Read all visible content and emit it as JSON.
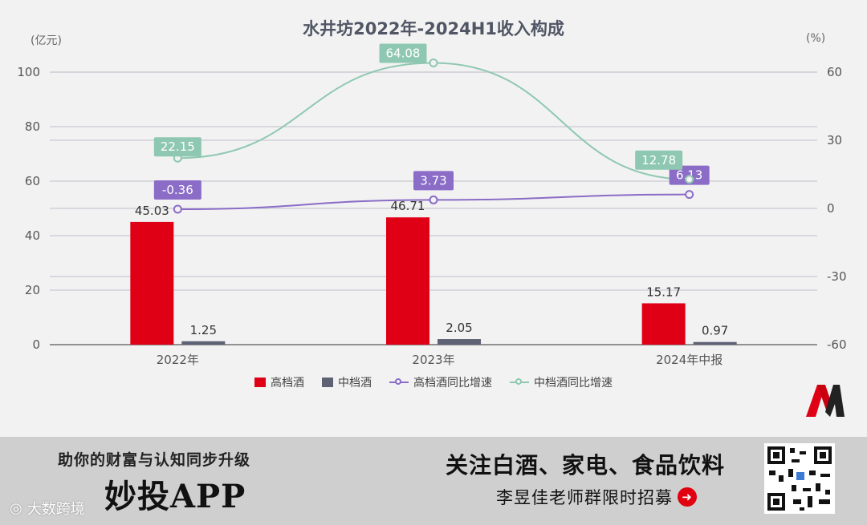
{
  "chart_data": {
    "type": "bar",
    "title": "水井坊2022年-2024H1收入构成",
    "left_unit": "(亿元)",
    "right_unit": "(%)",
    "categories": [
      "2022年",
      "2023年",
      "2024年中报"
    ],
    "ylim_left": [
      0,
      100
    ],
    "ylim_right": [
      -60,
      60
    ],
    "left_ticks": [
      "0",
      "20",
      "40",
      "60",
      "80",
      "100"
    ],
    "right_ticks": [
      "-60",
      "-30",
      "0",
      "30",
      "60"
    ],
    "grid": true,
    "legend_position": "bottom",
    "series": [
      {
        "name": "高档酒",
        "kind": "bar",
        "axis": "left",
        "color": "#e00015",
        "values": [
          45.03,
          46.71,
          15.17
        ],
        "labels": [
          "45.03",
          "46.71",
          "15.17"
        ]
      },
      {
        "name": "中档酒",
        "kind": "bar",
        "axis": "left",
        "color": "#5d6275",
        "values": [
          1.25,
          2.05,
          0.97
        ],
        "labels": [
          "1.25",
          "2.05",
          "0.97"
        ]
      },
      {
        "name": "高档酒同比增速",
        "kind": "line",
        "axis": "right",
        "color": "#8b6cc7",
        "values": [
          -0.36,
          3.73,
          6.13
        ],
        "labels": [
          "-0.36",
          "3.73",
          "6.13"
        ]
      },
      {
        "name": "中档酒同比增速",
        "kind": "line",
        "axis": "right",
        "color": "#8fc8b2",
        "values": [
          22.15,
          64.08,
          12.78
        ],
        "labels": [
          "22.15",
          "64.08",
          "12.78"
        ]
      }
    ]
  },
  "banner": {
    "slogan": "助你的财富与认知同步升级",
    "app_name": "妙投APP",
    "focus": "关注白酒、家电、食品饮料",
    "recruit": "李昱佳老师群限时招募",
    "watermark": "大数跨境",
    "accent": "#e00010"
  },
  "icons": {
    "arrow": "arrow-right-icon",
    "qr": "qr-code-icon",
    "logo": "m-logo-icon",
    "watermark": "weibo-icon"
  }
}
